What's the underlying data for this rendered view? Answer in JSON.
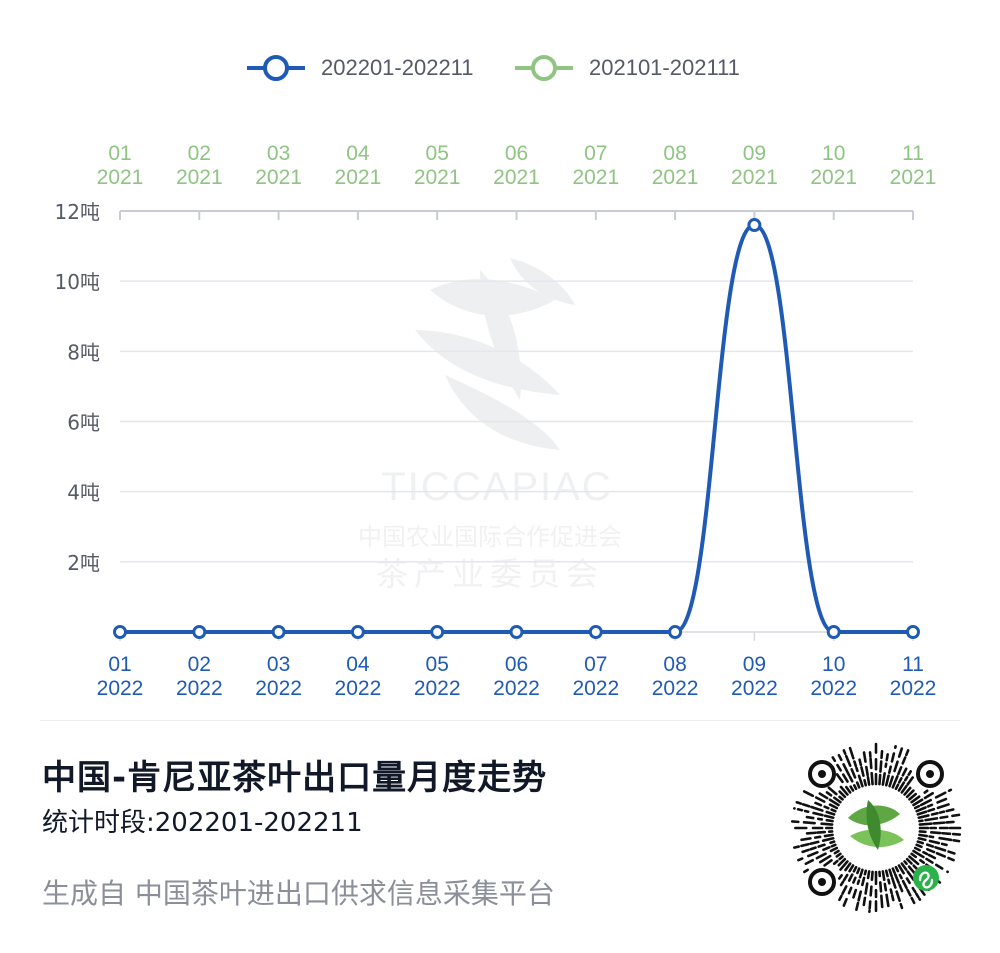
{
  "legend": [
    {
      "label": "202201-202211",
      "color": "#1f5bb5"
    },
    {
      "label": "202101-202111",
      "color": "#8fc483"
    }
  ],
  "chart_data": {
    "type": "line",
    "y_unit": "吨",
    "ylim": [
      0,
      12
    ],
    "y_ticks": [
      "",
      "2吨",
      "4吨",
      "6吨",
      "8吨",
      "10吨",
      "12吨"
    ],
    "x_bottom": [
      {
        "month": "01",
        "year": "2022"
      },
      {
        "month": "02",
        "year": "2022"
      },
      {
        "month": "03",
        "year": "2022"
      },
      {
        "month": "04",
        "year": "2022"
      },
      {
        "month": "05",
        "year": "2022"
      },
      {
        "month": "06",
        "year": "2022"
      },
      {
        "month": "07",
        "year": "2022"
      },
      {
        "month": "08",
        "year": "2022"
      },
      {
        "month": "09",
        "year": "2022"
      },
      {
        "month": "10",
        "year": "2022"
      },
      {
        "month": "11",
        "year": "2022"
      }
    ],
    "x_top": [
      {
        "month": "01",
        "year": "2021"
      },
      {
        "month": "02",
        "year": "2021"
      },
      {
        "month": "03",
        "year": "2021"
      },
      {
        "month": "04",
        "year": "2021"
      },
      {
        "month": "05",
        "year": "2021"
      },
      {
        "month": "06",
        "year": "2021"
      },
      {
        "month": "07",
        "year": "2021"
      },
      {
        "month": "08",
        "year": "2021"
      },
      {
        "month": "09",
        "year": "2021"
      },
      {
        "month": "10",
        "year": "2021"
      },
      {
        "month": "11",
        "year": "2021"
      }
    ],
    "series": [
      {
        "name": "202201-202211",
        "color": "#1f5bb5",
        "values": [
          0,
          0,
          0,
          0,
          0,
          0,
          0,
          0,
          11.6,
          0,
          0
        ]
      }
    ],
    "grid": true
  },
  "watermark": {
    "brand": "TICCAPIAC",
    "line1": "中国农业国际合作促进会",
    "line2": "茶产业委员会"
  },
  "footer": {
    "title": "中国-肯尼亚茶叶出口量月度走势",
    "period": "统计时段:202201-202211",
    "source": "生成自 中国茶叶进出口供求信息采集平台"
  },
  "colors": {
    "axis_label_bottom": "#1f5bb5",
    "axis_label_top": "#8fc483",
    "grid": "#e3e6f0",
    "tick_label": "#555a66"
  },
  "icons": {
    "qr": "mini-program-qr-code",
    "qr_center": "tea-leaf-logo",
    "qr_badge": "mini-program-icon"
  }
}
